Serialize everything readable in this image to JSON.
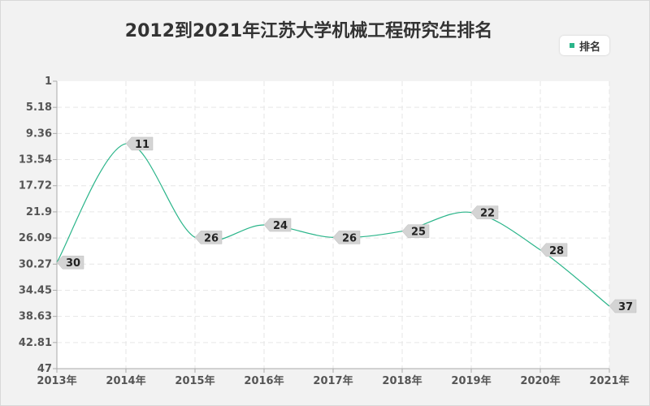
{
  "chart_data": {
    "type": "line",
    "title": "2012到2021年江苏大学机械工程研究生排名",
    "xlabel": "",
    "ylabel": "",
    "categories": [
      "2013年",
      "2014年",
      "2015年",
      "2016年",
      "2017年",
      "2018年",
      "2019年",
      "2020年",
      "2021年"
    ],
    "series": [
      {
        "name": "排名",
        "values": [
          30,
          11,
          26,
          24,
          26,
          25,
          22,
          28,
          37
        ],
        "color": "#2bb58a"
      }
    ],
    "y_ticks": [
      "1",
      "5.18",
      "9.36",
      "13.54",
      "17.72",
      "21.9",
      "26.09",
      "30.27",
      "34.45",
      "38.63",
      "42.81",
      "47"
    ],
    "ylim": [
      1,
      47
    ],
    "y_inverted": true,
    "grid": true,
    "legend_position": "top-right"
  }
}
